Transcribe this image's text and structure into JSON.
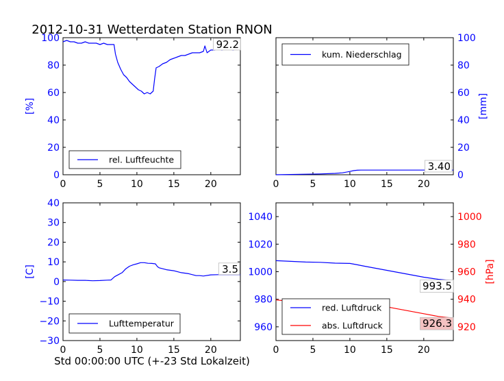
{
  "figure": {
    "title": "2012-10-31 Wetterdaten Station RNON",
    "xlabel": "Std 00:00:00 UTC (+-23 Std Lokalzeit)"
  },
  "colors": {
    "blue": "#0000ff",
    "red": "#ff0000",
    "axis": "#000000",
    "value_box_red": "#f4c2c2"
  },
  "chart_data": [
    {
      "type": "line",
      "panel": "top-left",
      "xlim": [
        0,
        24
      ],
      "ylim": [
        0,
        100
      ],
      "x_ticks": [
        0,
        5,
        10,
        15,
        20
      ],
      "y_ticks": [
        0,
        20,
        40,
        60,
        80,
        100
      ],
      "ylabel": "[%]",
      "y_axis_side": "left",
      "legend_position": "lower-left",
      "last_value_label": "92.2",
      "series": [
        {
          "name": "rel. Luftfeuchte",
          "color": "#0000ff",
          "x": [
            0,
            0.5,
            1,
            1.5,
            2,
            2.5,
            3,
            3.5,
            4,
            4.5,
            5,
            5.5,
            6,
            6.5,
            6.9,
            7.1,
            7.4,
            7.8,
            8.2,
            8.6,
            9,
            9.4,
            9.8,
            10.2,
            10.6,
            11,
            11.4,
            11.8,
            12.2,
            12.4,
            12.6,
            13,
            13.5,
            14,
            14.5,
            15,
            15.5,
            16,
            16.5,
            17,
            17.5,
            18,
            18.5,
            19,
            19.2,
            19.5,
            20,
            20.5,
            21,
            21.5,
            22,
            22.5,
            23,
            23.5,
            24
          ],
          "values": [
            97,
            98,
            97,
            97,
            96,
            96,
            97,
            96,
            96,
            96,
            95,
            96,
            95,
            95,
            95,
            88,
            82,
            77,
            73,
            71,
            68,
            66,
            64,
            62,
            61,
            59,
            60,
            59,
            61,
            70,
            78,
            79,
            81,
            82,
            84,
            85,
            86,
            87,
            87,
            88,
            89,
            89,
            89,
            90,
            94,
            89,
            91,
            91,
            92,
            91,
            92,
            92,
            91,
            92,
            92
          ]
        }
      ]
    },
    {
      "type": "line",
      "panel": "top-right",
      "xlim": [
        0,
        24
      ],
      "ylim": [
        0,
        100
      ],
      "x_ticks": [
        0,
        5,
        10,
        15,
        20
      ],
      "y_ticks": [
        0,
        20,
        40,
        60,
        80,
        100
      ],
      "ylabel": "[mm]",
      "y_axis_side": "right",
      "legend_position": "upper-left",
      "last_value_label": "3.40",
      "series": [
        {
          "name": "kum. Niederschlag",
          "color": "#0000ff",
          "x": [
            0,
            2,
            4,
            6,
            8,
            9,
            10,
            10.5,
            11,
            11.5,
            12,
            14,
            16,
            18,
            20,
            22,
            24
          ],
          "values": [
            0,
            0.2,
            0.4,
            0.6,
            1.0,
            1.4,
            2.4,
            3.0,
            3.3,
            3.4,
            3.4,
            3.4,
            3.4,
            3.4,
            3.4,
            3.4,
            3.4
          ]
        }
      ]
    },
    {
      "type": "line",
      "panel": "bottom-left",
      "xlim": [
        0,
        24
      ],
      "ylim": [
        -30,
        40
      ],
      "x_ticks": [
        0,
        5,
        10,
        15,
        20
      ],
      "y_ticks": [
        -30,
        -20,
        -10,
        0,
        10,
        20,
        30,
        40
      ],
      "ylabel": "[C]",
      "y_axis_side": "left",
      "legend_position": "lower-left",
      "last_value_label": "3.5",
      "series": [
        {
          "name": "Lufttemperatur",
          "color": "#0000ff",
          "x": [
            0,
            1,
            2,
            3,
            4,
            5,
            6,
            6.5,
            7,
            7.5,
            8,
            8.5,
            9,
            9.5,
            10,
            10.5,
            11,
            11.5,
            12,
            12.5,
            12.8,
            13,
            14,
            15,
            16,
            17,
            18,
            18.5,
            19,
            20,
            21,
            22,
            23,
            24
          ],
          "values": [
            0.8,
            0.7,
            0.6,
            0.6,
            0.4,
            0.5,
            0.7,
            0.8,
            2.5,
            3.5,
            4.5,
            6.5,
            7.8,
            8.5,
            9.0,
            9.6,
            9.6,
            9.3,
            9.2,
            9.0,
            7.5,
            7.0,
            6.0,
            5.5,
            4.5,
            4.0,
            3.0,
            3.0,
            2.8,
            3.4,
            3.5,
            3.5,
            3.5,
            3.5
          ]
        }
      ]
    },
    {
      "type": "line",
      "panel": "bottom-right",
      "xlim": [
        0,
        24
      ],
      "ylim": [
        950,
        1050
      ],
      "y_ticks": [
        960,
        980,
        1000,
        1020,
        1040
      ],
      "secondary_ylim": [
        910,
        1010
      ],
      "secondary_y_ticks": [
        920,
        940,
        960,
        980,
        1000
      ],
      "x_ticks": [
        0,
        5,
        10,
        15,
        20
      ],
      "ylabel": "[hPa]",
      "y_axis_side": "left-and-right",
      "legend_position": "lower-left",
      "series": [
        {
          "name": "red. Luftdruck",
          "color": "#0000ff",
          "axis": "left",
          "last_value_label": "993.5",
          "x": [
            0,
            2,
            4,
            6,
            8,
            10,
            11,
            12,
            14,
            16,
            18,
            20,
            22,
            24
          ],
          "values": [
            1008,
            1007.5,
            1007,
            1006.8,
            1006.2,
            1006,
            1005,
            1004,
            1002,
            1000,
            998,
            996,
            994.5,
            993.5
          ]
        },
        {
          "name": "abs. Luftdruck",
          "color": "#ff0000",
          "axis": "right",
          "last_value_label": "926.3",
          "x": [
            0,
            2,
            4,
            6,
            8,
            9,
            10,
            11,
            12,
            14,
            16,
            18,
            20,
            22,
            24
          ],
          "values": [
            939.5,
            938.5,
            938,
            937.8,
            937.6,
            938,
            939.2,
            938.8,
            936.5,
            935.5,
            933.5,
            931.5,
            929.5,
            927.5,
            926.3
          ]
        }
      ]
    }
  ]
}
